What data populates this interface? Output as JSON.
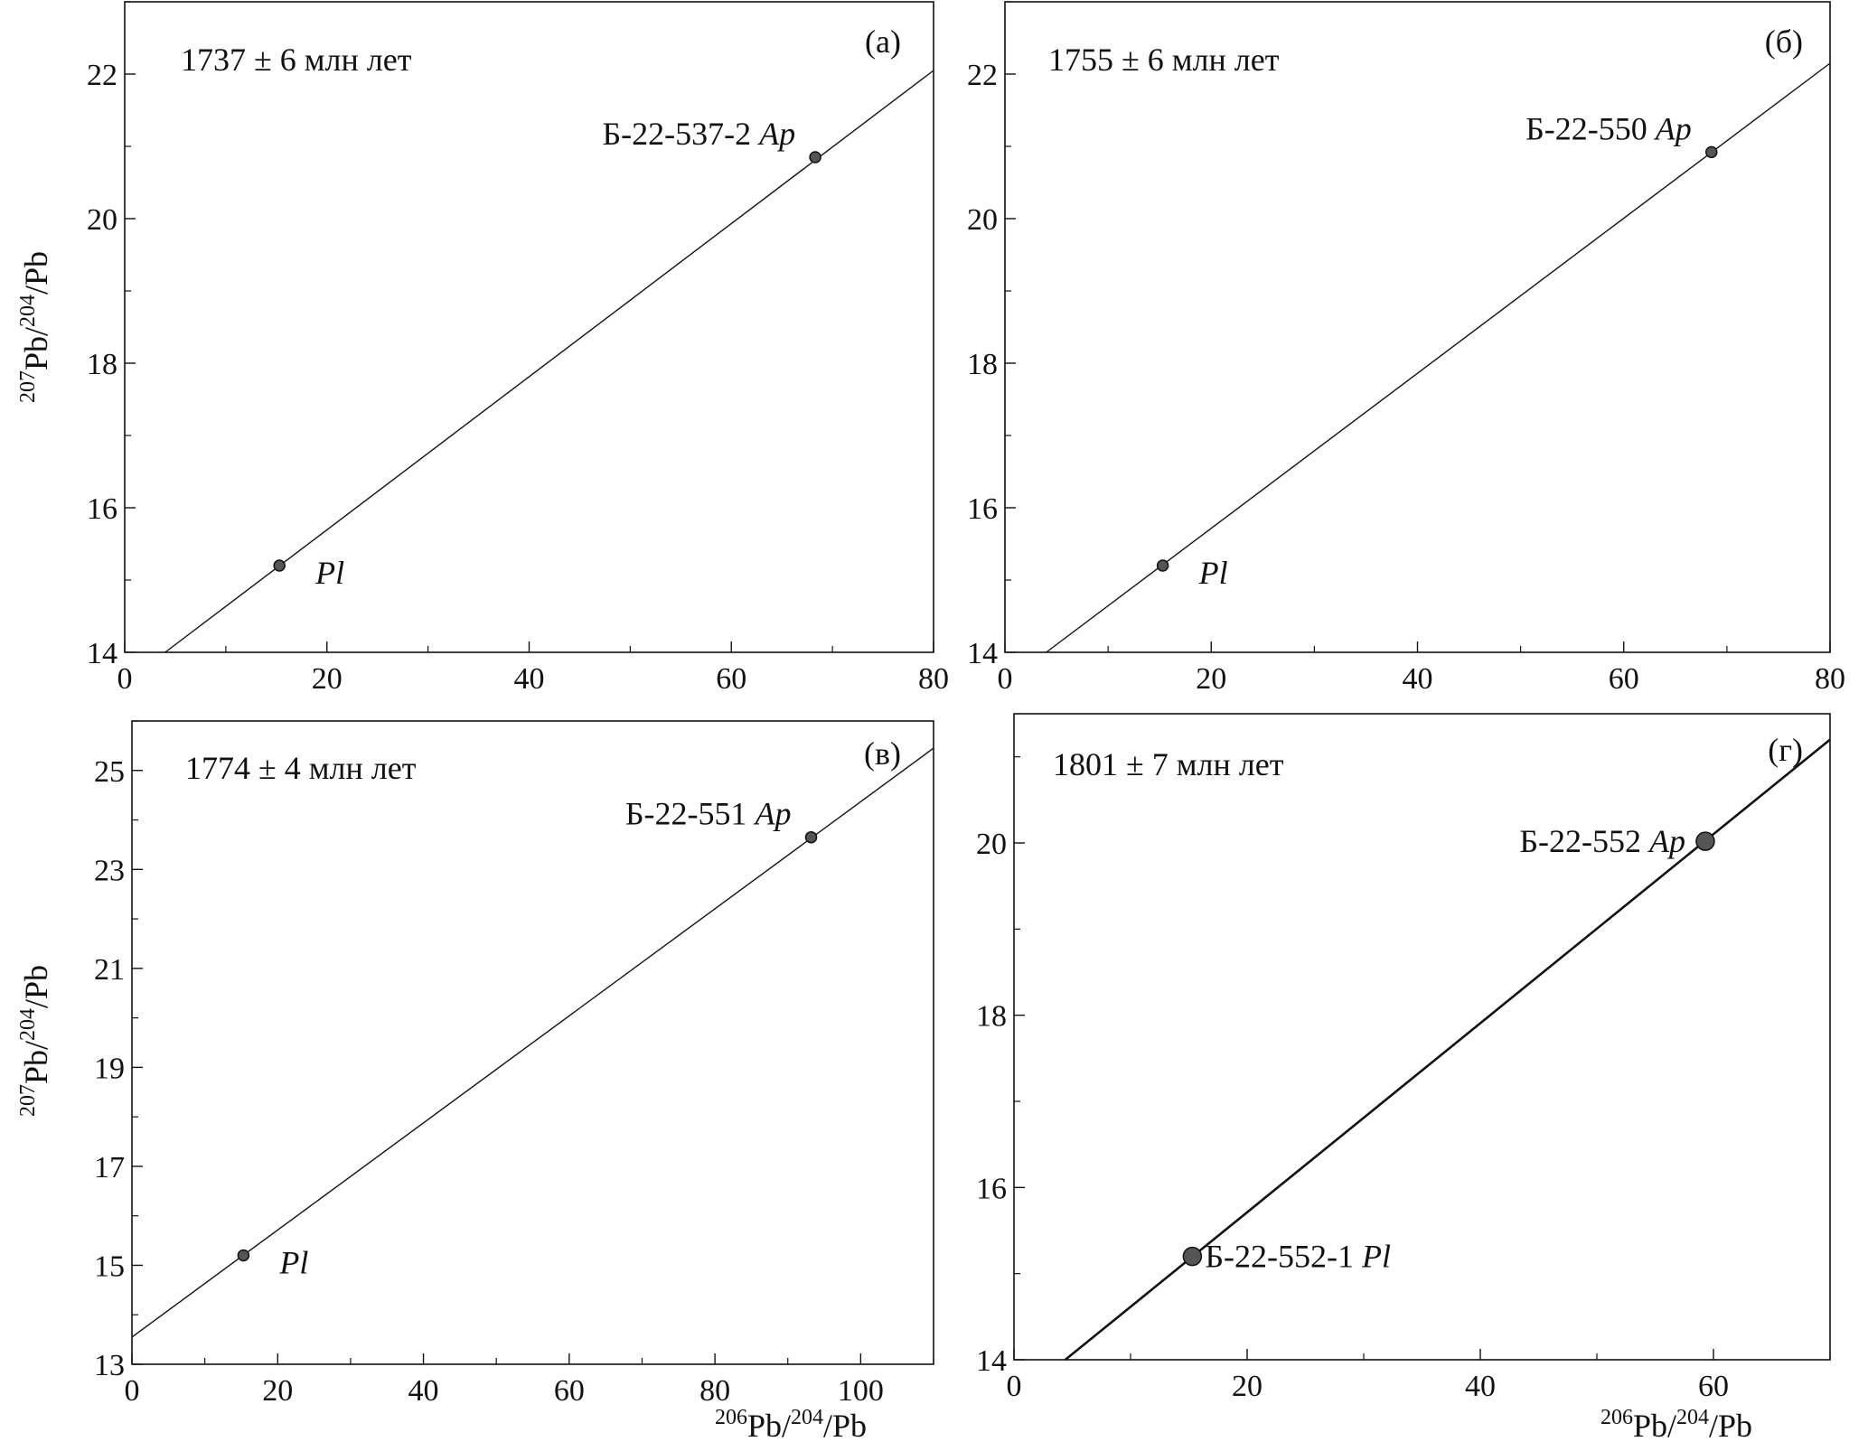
{
  "chart_data": [
    {
      "type": "scatter",
      "panel": "(а)",
      "age": "1737 ± 6 млн лет",
      "ylabel": {
        "sup": "207",
        "main": "Pb/",
        "sup2": "204",
        "tail": "/Pb"
      },
      "xlabel": null,
      "xlim": [
        0,
        80
      ],
      "ylim": [
        14,
        23
      ],
      "xticks": [
        0,
        20,
        40,
        60,
        80
      ],
      "xtick_labels": [
        "0",
        "20",
        "40",
        "60",
        "80"
      ],
      "yticks": [
        14,
        16,
        18,
        20,
        22
      ],
      "ytick_labels": [
        "14",
        "16",
        "18",
        "20",
        "22"
      ],
      "points": [
        {
          "x": 15.3,
          "y": 15.2,
          "label": "",
          "label_italic": "Pl"
        },
        {
          "x": 68.3,
          "y": 20.85,
          "label": "Б-22-537-2 ",
          "label_italic": "Ap"
        }
      ],
      "isochron": [
        [
          4,
          14
        ],
        [
          80,
          22.05
        ]
      ]
    },
    {
      "type": "scatter",
      "panel": "(б)",
      "age": "1755 ± 6 млн лет",
      "ylabel": null,
      "xlabel": null,
      "xlim": [
        0,
        80
      ],
      "ylim": [
        14,
        23
      ],
      "xticks": [
        0,
        20,
        40,
        60,
        80
      ],
      "xtick_labels": [
        "0",
        "20",
        "40",
        "60",
        "80"
      ],
      "yticks": [
        14,
        16,
        18,
        20,
        22
      ],
      "ytick_labels": [
        "14",
        "16",
        "18",
        "20",
        "22"
      ],
      "points": [
        {
          "x": 15.3,
          "y": 15.2,
          "label": "",
          "label_italic": "Pl"
        },
        {
          "x": 68.5,
          "y": 20.92,
          "label": "Б-22-550 ",
          "label_italic": "Ap"
        }
      ],
      "isochron": [
        [
          4,
          14
        ],
        [
          80,
          22.15
        ]
      ]
    },
    {
      "type": "scatter",
      "panel": "(в)",
      "age": "1774 ± 4 млн лет",
      "ylabel": {
        "sup": "207",
        "main": "Pb/",
        "sup2": "204",
        "tail": "/Pb"
      },
      "xlabel": {
        "sup": "206",
        "main": "Pb/",
        "sup2": "204",
        "tail": "/Pb"
      },
      "xlim": [
        0,
        110
      ],
      "ylim": [
        13,
        26
      ],
      "xticks": [
        0,
        20,
        40,
        60,
        80,
        100
      ],
      "xtick_labels": [
        "0",
        "20",
        "40",
        "60",
        "80",
        "100"
      ],
      "yticks": [
        13,
        15,
        17,
        19,
        21,
        23,
        25
      ],
      "ytick_labels": [
        "13",
        "15",
        "17",
        "19",
        "21",
        "23",
        "25"
      ],
      "points": [
        {
          "x": 15.3,
          "y": 15.2,
          "label": "",
          "label_italic": "Pl"
        },
        {
          "x": 93.2,
          "y": 23.65,
          "label": "Б-22-551 ",
          "label_italic": "Ap"
        }
      ],
      "isochron": [
        [
          0,
          13.55
        ],
        [
          110,
          25.45
        ]
      ]
    },
    {
      "type": "scatter",
      "panel": "(г)",
      "age": "1801 ± 7 млн лет",
      "ylabel": null,
      "xlabel": {
        "sup": "206",
        "main": "Pb/",
        "sup2": "204",
        "tail": "/Pb"
      },
      "xlim": [
        0,
        70
      ],
      "ylim": [
        14,
        21.5
      ],
      "xticks": [
        0,
        20,
        40,
        60
      ],
      "xtick_labels": [
        "0",
        "20",
        "40",
        "60"
      ],
      "yticks": [
        14,
        16,
        18,
        20
      ],
      "ytick_labels": [
        "14",
        "16",
        "18",
        "20"
      ],
      "points": [
        {
          "x": 15.3,
          "y": 15.2,
          "label": "Б-22-552-1 ",
          "label_italic": "Pl"
        },
        {
          "x": 59.3,
          "y": 20.02,
          "label": "Б-22-552 ",
          "label_italic": "Ap"
        }
      ],
      "isochron": [
        [
          4.4,
          14
        ],
        [
          70,
          21.2
        ]
      ]
    }
  ]
}
